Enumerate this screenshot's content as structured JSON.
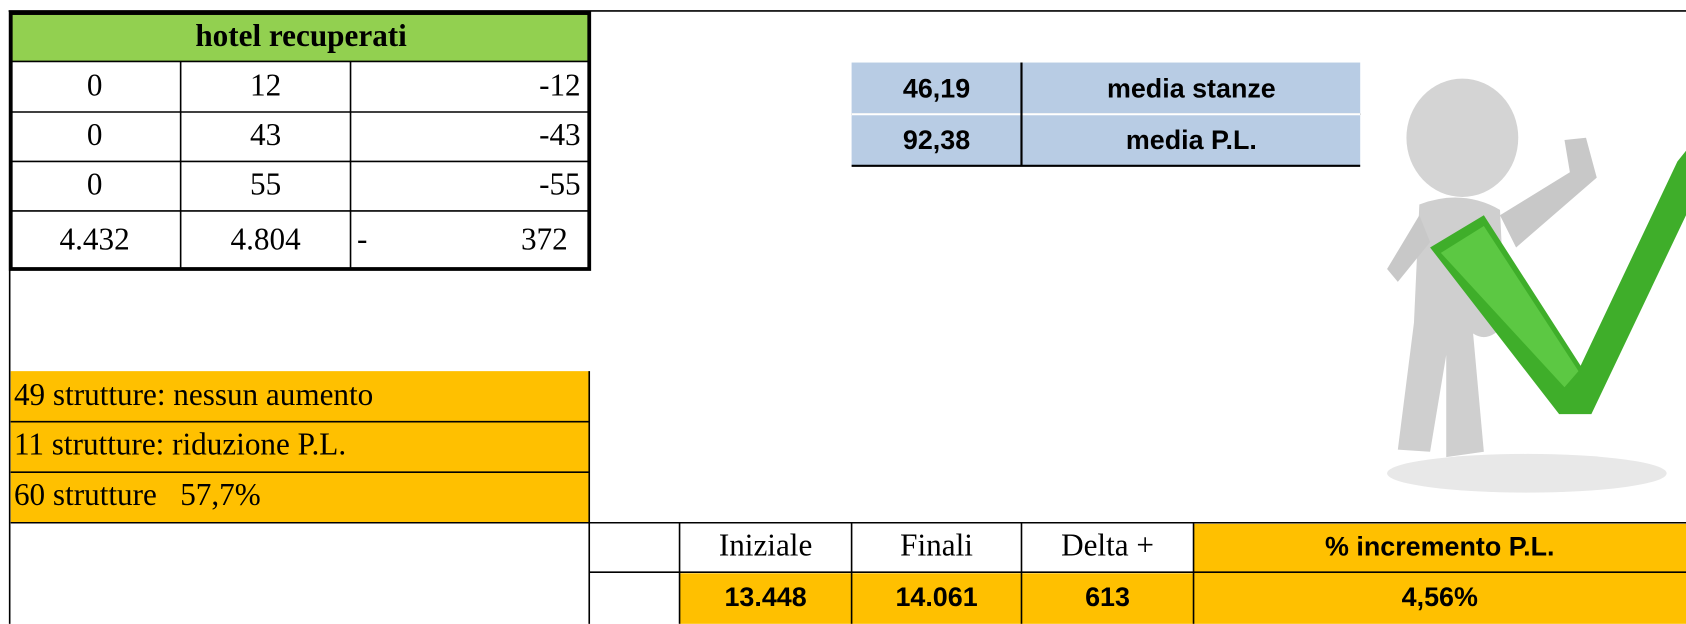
{
  "table": {
    "title": "hotel recuperati",
    "rows": [
      [
        "0",
        "12",
        "-12"
      ],
      [
        "0",
        "43",
        "-43"
      ],
      [
        "0",
        "55",
        "-55"
      ],
      [
        "4.432",
        "4.804",
        "-",
        "372"
      ]
    ]
  },
  "summary": {
    "rows": [
      [
        "46,19",
        "media stanze"
      ],
      [
        "92,38",
        "media P.L."
      ]
    ]
  },
  "notes": [
    "49 strutture: nessun aumento",
    "11 strutture: riduzione P.L.",
    "60 strutture   57,7%"
  ],
  "totals": {
    "headers": [
      "Iniziale",
      "Finali",
      "Delta +",
      "% incremento P.L."
    ],
    "values": [
      "13.448",
      "14.061",
      "613",
      "4,56%"
    ]
  }
}
